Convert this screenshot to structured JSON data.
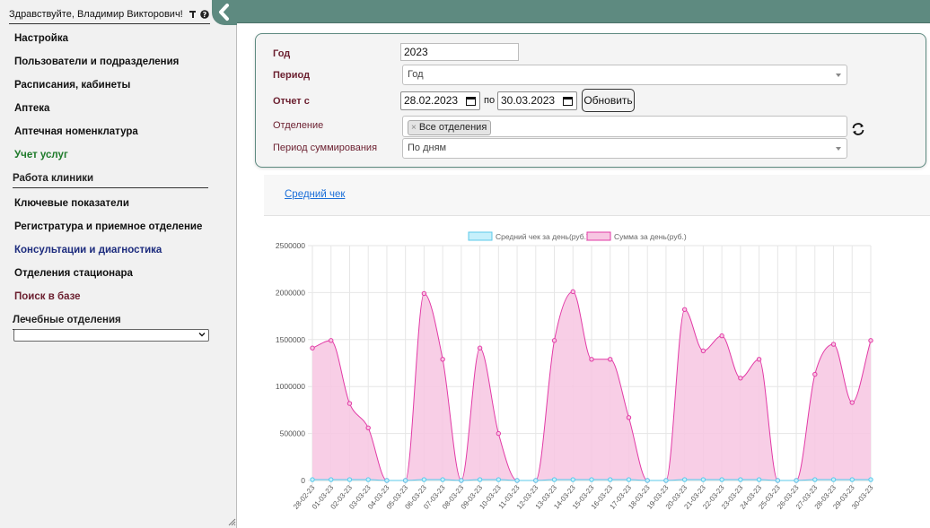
{
  "sidebar": {
    "greeting": "Здравствуйте, Владимир Викторович!",
    "nav_top": [
      {
        "label": "Настройка",
        "color": "#111111"
      },
      {
        "label": "Пользователи и подразделения",
        "color": "#111111"
      },
      {
        "label": "Расписания, кабинеты",
        "color": "#111111"
      },
      {
        "label": "Аптека",
        "color": "#111111"
      },
      {
        "label": "Аптечная номенклатура",
        "color": "#111111"
      },
      {
        "label": "Учет услуг",
        "color": "#1e7a2a"
      }
    ],
    "section_clinic": "Работа клиники",
    "nav_clinic": [
      {
        "label": "Ключевые показатели",
        "color": "#111111"
      },
      {
        "label": "Регистратура и приемное отделение",
        "color": "#111111"
      },
      {
        "label": "Консультации и диагностика",
        "color": "#1c2b7d"
      },
      {
        "label": "Отделения стационара",
        "color": "#111111"
      },
      {
        "label": "Поиск в базе",
        "color": "#6b1f2f"
      }
    ],
    "section_departments": "Лечебные отделения",
    "departments_selected": ""
  },
  "filter": {
    "year_label": "Год",
    "year_value": "2023",
    "period_label": "Период",
    "period_value": "Год",
    "report_label": "Отчет с",
    "date_from": "28.02.2023",
    "date_sep": "по",
    "date_to": "30.03.2023",
    "refresh_label": "Обновить",
    "department_label": "Отделение",
    "department_chip": "Все отделения",
    "summation_label": "Период суммирования",
    "summation_value": "По дням"
  },
  "report": {
    "link_label": "Средний чек"
  },
  "colors": {
    "accent": "#5e8a80",
    "series_avg_fill": "#c6f0fb",
    "series_avg_stroke": "#5bc8ea",
    "series_sum_fill": "#f7c6e2",
    "series_sum_stroke": "#e23aa6"
  },
  "chart_data": {
    "type": "area",
    "title": "",
    "xlabel": "",
    "ylabel": "",
    "ylim": [
      0,
      2500000
    ],
    "yticks": [
      0,
      500000,
      1000000,
      1500000,
      2000000,
      2500000
    ],
    "legend_position": "top",
    "x": [
      "28-02-23",
      "01-03-23",
      "02-03-23",
      "03-03-23",
      "04-03-23",
      "05-03-23",
      "06-03-23",
      "07-03-23",
      "08-03-23",
      "09-03-23",
      "10-03-23",
      "11-03-23",
      "12-03-23",
      "13-03-23",
      "14-03-23",
      "15-03-23",
      "16-03-23",
      "17-03-23",
      "18-03-23",
      "19-03-23",
      "20-03-23",
      "21-03-23",
      "22-03-23",
      "23-03-23",
      "24-03-23",
      "25-03-23",
      "26-03-23",
      "27-03-23",
      "28-03-23",
      "29-03-23",
      "30-03-23"
    ],
    "series": [
      {
        "name": "Средний чек за день(руб.)",
        "values": [
          9000,
          9000,
          9000,
          9000,
          0,
          0,
          9000,
          9000,
          0,
          9000,
          9000,
          0,
          0,
          9000,
          9000,
          9000,
          9000,
          9000,
          0,
          0,
          9000,
          9000,
          9000,
          9000,
          9000,
          0,
          0,
          9000,
          9000,
          9000,
          9000
        ]
      },
      {
        "name": "Сумма за день(руб.)",
        "values": [
          1410000,
          1490000,
          820000,
          560000,
          0,
          0,
          1990000,
          1290000,
          0,
          1410000,
          500000,
          0,
          0,
          1490000,
          2010000,
          1290000,
          1290000,
          670000,
          0,
          0,
          1820000,
          1380000,
          1540000,
          1090000,
          1290000,
          0,
          0,
          1130000,
          1450000,
          830000,
          1490000
        ]
      }
    ]
  }
}
